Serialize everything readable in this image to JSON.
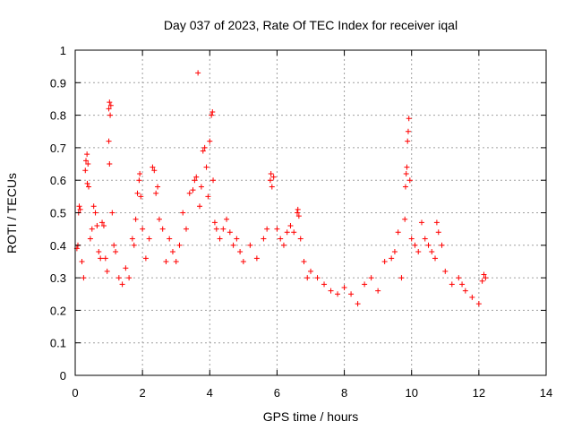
{
  "chart_data": {
    "type": "scatter",
    "title": "Day 037 of 2023, Rate Of TEC Index for receiver iqal",
    "xlabel": "GPS time / hours",
    "ylabel": "ROTI / TECUs",
    "xlim": [
      0,
      14
    ],
    "ylim": [
      0,
      1
    ],
    "xticks": [
      "0",
      "2",
      "4",
      "6",
      "8",
      "10",
      "12",
      "14"
    ],
    "yticks": [
      "0",
      "0.1",
      "0.2",
      "0.3",
      "0.4",
      "0.5",
      "0.6",
      "0.7",
      "0.8",
      "0.9",
      "1"
    ],
    "grid": true,
    "marker": "plus",
    "point_color": "#ff0000",
    "points": [
      [
        0.05,
        0.39
      ],
      [
        0.08,
        0.4
      ],
      [
        0.1,
        0.5
      ],
      [
        0.12,
        0.52
      ],
      [
        0.15,
        0.51
      ],
      [
        0.2,
        0.35
      ],
      [
        0.25,
        0.3
      ],
      [
        0.3,
        0.63
      ],
      [
        0.32,
        0.66
      ],
      [
        0.35,
        0.68
      ],
      [
        0.38,
        0.65
      ],
      [
        0.36,
        0.59
      ],
      [
        0.4,
        0.58
      ],
      [
        0.45,
        0.42
      ],
      [
        0.5,
        0.45
      ],
      [
        0.55,
        0.52
      ],
      [
        0.6,
        0.5
      ],
      [
        0.65,
        0.46
      ],
      [
        0.7,
        0.38
      ],
      [
        0.75,
        0.36
      ],
      [
        0.8,
        0.47
      ],
      [
        0.85,
        0.46
      ],
      [
        0.9,
        0.36
      ],
      [
        0.95,
        0.32
      ],
      [
        1.0,
        0.82
      ],
      [
        1.02,
        0.84
      ],
      [
        1.04,
        0.8
      ],
      [
        1.06,
        0.83
      ],
      [
        1.0,
        0.72
      ],
      [
        1.02,
        0.65
      ],
      [
        1.1,
        0.5
      ],
      [
        1.15,
        0.4
      ],
      [
        1.2,
        0.38
      ],
      [
        1.3,
        0.3
      ],
      [
        1.4,
        0.28
      ],
      [
        1.5,
        0.33
      ],
      [
        1.6,
        0.3
      ],
      [
        1.7,
        0.42
      ],
      [
        1.75,
        0.4
      ],
      [
        1.8,
        0.48
      ],
      [
        1.85,
        0.56
      ],
      [
        1.9,
        0.6
      ],
      [
        1.92,
        0.62
      ],
      [
        1.95,
        0.55
      ],
      [
        2.0,
        0.45
      ],
      [
        2.1,
        0.36
      ],
      [
        2.2,
        0.42
      ],
      [
        2.3,
        0.64
      ],
      [
        2.35,
        0.63
      ],
      [
        2.4,
        0.56
      ],
      [
        2.45,
        0.58
      ],
      [
        2.5,
        0.48
      ],
      [
        2.6,
        0.45
      ],
      [
        2.7,
        0.35
      ],
      [
        2.8,
        0.42
      ],
      [
        2.9,
        0.38
      ],
      [
        3.0,
        0.35
      ],
      [
        3.1,
        0.4
      ],
      [
        3.2,
        0.5
      ],
      [
        3.3,
        0.45
      ],
      [
        3.4,
        0.56
      ],
      [
        3.5,
        0.57
      ],
      [
        3.55,
        0.6
      ],
      [
        3.6,
        0.61
      ],
      [
        3.65,
        0.93
      ],
      [
        3.7,
        0.52
      ],
      [
        3.75,
        0.58
      ],
      [
        3.8,
        0.69
      ],
      [
        3.85,
        0.7
      ],
      [
        3.9,
        0.64
      ],
      [
        3.95,
        0.55
      ],
      [
        4.0,
        0.72
      ],
      [
        4.05,
        0.8
      ],
      [
        4.08,
        0.81
      ],
      [
        4.1,
        0.6
      ],
      [
        4.15,
        0.47
      ],
      [
        4.2,
        0.45
      ],
      [
        4.3,
        0.42
      ],
      [
        4.4,
        0.45
      ],
      [
        4.5,
        0.48
      ],
      [
        4.6,
        0.44
      ],
      [
        4.7,
        0.4
      ],
      [
        4.8,
        0.42
      ],
      [
        4.9,
        0.38
      ],
      [
        5.0,
        0.35
      ],
      [
        5.2,
        0.4
      ],
      [
        5.4,
        0.36
      ],
      [
        5.6,
        0.42
      ],
      [
        5.7,
        0.45
      ],
      [
        5.8,
        0.6
      ],
      [
        5.82,
        0.62
      ],
      [
        5.85,
        0.58
      ],
      [
        5.9,
        0.61
      ],
      [
        6.0,
        0.45
      ],
      [
        6.1,
        0.42
      ],
      [
        6.2,
        0.4
      ],
      [
        6.3,
        0.44
      ],
      [
        6.4,
        0.46
      ],
      [
        6.5,
        0.44
      ],
      [
        6.6,
        0.5
      ],
      [
        6.62,
        0.51
      ],
      [
        6.65,
        0.49
      ],
      [
        6.7,
        0.42
      ],
      [
        6.8,
        0.35
      ],
      [
        6.9,
        0.3
      ],
      [
        7.0,
        0.32
      ],
      [
        7.2,
        0.3
      ],
      [
        7.4,
        0.28
      ],
      [
        7.6,
        0.26
      ],
      [
        7.8,
        0.25
      ],
      [
        8.0,
        0.27
      ],
      [
        8.2,
        0.25
      ],
      [
        8.4,
        0.22
      ],
      [
        8.6,
        0.28
      ],
      [
        8.8,
        0.3
      ],
      [
        9.0,
        0.26
      ],
      [
        9.2,
        0.35
      ],
      [
        9.4,
        0.36
      ],
      [
        9.5,
        0.38
      ],
      [
        9.6,
        0.44
      ],
      [
        9.7,
        0.3
      ],
      [
        9.8,
        0.48
      ],
      [
        9.82,
        0.58
      ],
      [
        9.84,
        0.62
      ],
      [
        9.86,
        0.64
      ],
      [
        9.88,
        0.72
      ],
      [
        9.9,
        0.75
      ],
      [
        9.92,
        0.79
      ],
      [
        9.95,
        0.6
      ],
      [
        10.0,
        0.42
      ],
      [
        10.1,
        0.4
      ],
      [
        10.2,
        0.38
      ],
      [
        10.3,
        0.47
      ],
      [
        10.4,
        0.42
      ],
      [
        10.5,
        0.4
      ],
      [
        10.6,
        0.38
      ],
      [
        10.7,
        0.36
      ],
      [
        10.75,
        0.47
      ],
      [
        10.8,
        0.44
      ],
      [
        10.9,
        0.4
      ],
      [
        11.0,
        0.32
      ],
      [
        11.2,
        0.28
      ],
      [
        11.4,
        0.3
      ],
      [
        11.5,
        0.28
      ],
      [
        11.6,
        0.26
      ],
      [
        11.8,
        0.24
      ],
      [
        12.0,
        0.22
      ],
      [
        12.1,
        0.29
      ],
      [
        12.15,
        0.31
      ],
      [
        12.2,
        0.3
      ]
    ]
  }
}
